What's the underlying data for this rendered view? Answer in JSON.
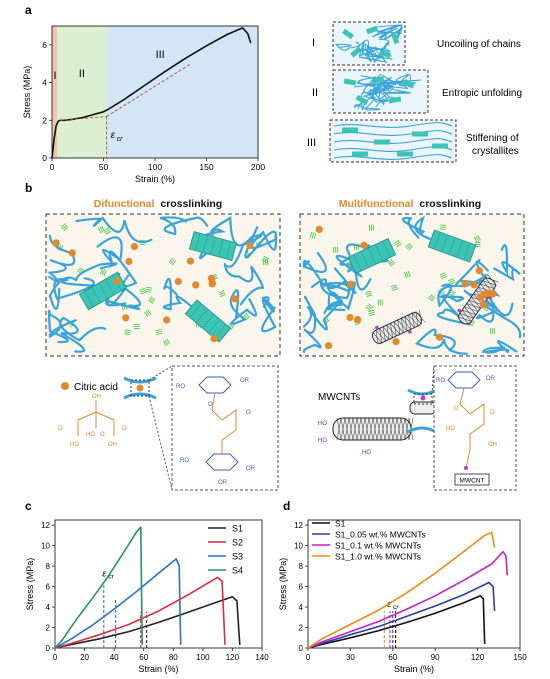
{
  "panels": {
    "a": {
      "letter": "a",
      "xlabel": "Strain (%)",
      "ylabel": "Stress (MPa)",
      "region_labels": [
        "I",
        "II",
        "III"
      ],
      "ecr_symbol": "ε",
      "ecr_sub": "cr",
      "mechanisms": [
        {
          "roman": "I",
          "text": "Uncoiling of chains"
        },
        {
          "roman": "II",
          "text": "Entropic unfolding"
        },
        {
          "roman": "III",
          "text": "Stiffening of crystallites",
          "text_line1": "Stiffening of",
          "text_line2": "crystallites"
        }
      ]
    },
    "b": {
      "letter": "b",
      "left_title_accent": "Difunctional",
      "left_title_rest": "crosslinking",
      "right_title_accent": "Multifunctional",
      "right_title_rest": "crosslinking",
      "legend_citric": "Citric acid",
      "legend_mwcnt": "MWCNTs",
      "mwcnt_box": "MWCNT"
    },
    "c": {
      "letter": "c",
      "ecr_symbol": "ε",
      "ecr_sub": "cr"
    },
    "d": {
      "letter": "d",
      "ecr_symbol": "ε",
      "ecr_sub": "cr"
    }
  },
  "colors": {
    "accent_orange": "#e2892b",
    "chain_blue": "#3aa3d9",
    "crystal_teal": "#3cc4b4",
    "hbond_green": "#4cc94c",
    "region_I": "#f3c4ad",
    "region_II": "#dcefd0",
    "region_III": "#d4e6f6"
  },
  "chart_data": [
    {
      "id": "a",
      "type": "line",
      "xlabel": "Strain (%)",
      "ylabel": "Stress (MPa)",
      "xlim": [
        0,
        200
      ],
      "ylim": [
        0,
        7
      ],
      "xticks": [
        0,
        50,
        100,
        150,
        200
      ],
      "yticks": [
        0,
        2,
        4,
        6
      ],
      "regions": [
        {
          "label": "I",
          "from": 0,
          "to": 5
        },
        {
          "label": "II",
          "from": 5,
          "to": 53
        },
        {
          "label": "III",
          "from": 53,
          "to": 200
        }
      ],
      "ecr_x": 53,
      "series": [
        {
          "x": [
            0,
            2,
            4,
            6,
            8,
            12,
            20,
            30,
            40,
            50,
            55,
            70,
            90,
            110,
            130,
            150,
            170,
            185,
            190,
            193
          ],
          "y": [
            0,
            1.0,
            1.7,
            1.95,
            2.0,
            2.0,
            2.05,
            2.15,
            2.3,
            2.45,
            2.6,
            3.1,
            3.85,
            4.6,
            5.3,
            5.95,
            6.55,
            6.9,
            6.6,
            6.1
          ]
        }
      ]
    },
    {
      "id": "c",
      "type": "line",
      "xlabel": "Strain (%)",
      "ylabel": "Stress (MPa)",
      "xlim": [
        0,
        140
      ],
      "ylim": [
        0,
        12.5
      ],
      "xticks": [
        0,
        20,
        40,
        60,
        80,
        100,
        120,
        140
      ],
      "yticks": [
        0,
        2,
        4,
        6,
        8,
        10,
        12
      ],
      "series": [
        {
          "name": "S1",
          "color": "#222222",
          "ecr": 62,
          "x": [
            0,
            10,
            30,
            50,
            70,
            90,
            110,
            120,
            123,
            125
          ],
          "y": [
            0,
            0.3,
            0.9,
            1.6,
            2.5,
            3.5,
            4.5,
            5.0,
            4.6,
            0.3
          ]
        },
        {
          "name": "S2",
          "color": "#d62f3a",
          "ecr": 58,
          "x": [
            0,
            10,
            30,
            50,
            70,
            90,
            110,
            113,
            115
          ],
          "y": [
            0,
            0.4,
            1.3,
            2.3,
            3.6,
            5.2,
            6.9,
            6.5,
            0.3
          ]
        },
        {
          "name": "S3",
          "color": "#2b6fd6",
          "ecr": 41,
          "x": [
            0,
            10,
            25,
            40,
            55,
            70,
            82,
            84,
            85
          ],
          "y": [
            0,
            0.8,
            2.2,
            3.8,
            5.5,
            7.3,
            8.7,
            8.0,
            0.3
          ]
        },
        {
          "name": "S4",
          "color": "#23955e",
          "ecr": 33,
          "x": [
            0,
            5,
            15,
            25,
            35,
            45,
            55,
            58,
            59
          ],
          "y": [
            0,
            0.8,
            2.9,
            4.8,
            6.8,
            9.0,
            11.3,
            11.8,
            0.3
          ]
        }
      ]
    },
    {
      "id": "d",
      "type": "line",
      "xlabel": "Strain (%)",
      "ylabel": "Stress (MPa)",
      "xlim": [
        0,
        150
      ],
      "ylim": [
        0,
        12.5
      ],
      "xticks": [
        0,
        30,
        60,
        90,
        120,
        150
      ],
      "yticks": [
        0,
        2,
        4,
        6,
        8,
        10,
        12
      ],
      "series": [
        {
          "name": "S1",
          "color": "#111111",
          "ecr": 62,
          "x": [
            0,
            10,
            30,
            50,
            70,
            90,
            110,
            122,
            124,
            125
          ],
          "y": [
            0,
            0.35,
            1.0,
            1.7,
            2.5,
            3.4,
            4.4,
            5.1,
            4.8,
            0.4
          ]
        },
        {
          "name": "S1_0.05 wt.% MWCNTs",
          "color": "#2a3ea8",
          "ecr": 60,
          "x": [
            0,
            10,
            30,
            50,
            70,
            90,
            110,
            128,
            131,
            132
          ],
          "y": [
            0,
            0.45,
            1.3,
            2.1,
            3.1,
            4.1,
            5.2,
            6.4,
            6.0,
            3.6
          ]
        },
        {
          "name": "S1_0.1 wt.% MWCNTs",
          "color": "#c323c9",
          "ecr": 58,
          "x": [
            0,
            10,
            30,
            50,
            70,
            90,
            110,
            130,
            138,
            140,
            141
          ],
          "y": [
            0,
            0.6,
            1.6,
            2.6,
            3.8,
            5.1,
            6.6,
            8.2,
            9.4,
            9.0,
            7.1
          ]
        },
        {
          "name": "S1_1.0 wt.% MWCNTs",
          "color": "#ef8a17",
          "ecr": 54,
          "x": [
            0,
            10,
            30,
            50,
            70,
            90,
            110,
            125,
            130,
            132
          ],
          "y": [
            0,
            0.9,
            2.3,
            3.7,
            5.4,
            7.3,
            9.4,
            11.0,
            11.3,
            9.8
          ]
        }
      ]
    }
  ]
}
